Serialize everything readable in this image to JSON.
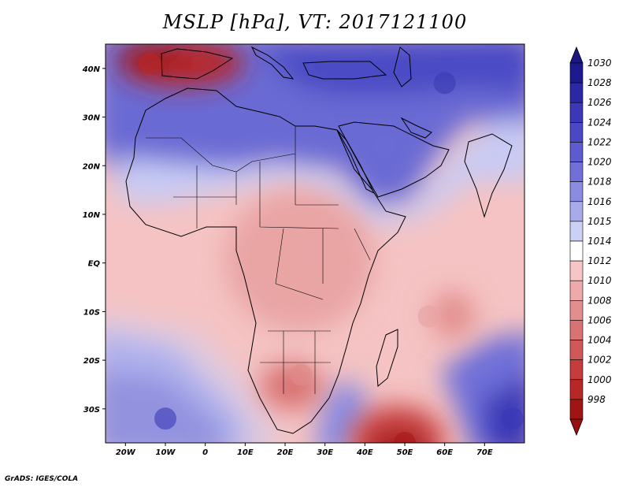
{
  "title": "MSLP [hPa], VT: 2017121100",
  "credit": "GrADS: IGES/COLA",
  "map": {
    "lon_range": [
      -25,
      80
    ],
    "lat_range": [
      -37,
      45
    ],
    "lon_ticks": [
      {
        "lon": -20,
        "label": "20W"
      },
      {
        "lon": -10,
        "label": "10W"
      },
      {
        "lon": 0,
        "label": "0"
      },
      {
        "lon": 10,
        "label": "10E"
      },
      {
        "lon": 20,
        "label": "20E"
      },
      {
        "lon": 30,
        "label": "30E"
      },
      {
        "lon": 40,
        "label": "40E"
      },
      {
        "lon": 50,
        "label": "50E"
      },
      {
        "lon": 60,
        "label": "60E"
      },
      {
        "lon": 70,
        "label": "70E"
      }
    ],
    "lat_ticks": [
      {
        "lat": 40,
        "label": "40N"
      },
      {
        "lat": 30,
        "label": "30N"
      },
      {
        "lat": 20,
        "label": "20N"
      },
      {
        "lat": 10,
        "label": "10N"
      },
      {
        "lat": 0,
        "label": "EQ"
      },
      {
        "lat": -10,
        "label": "10S"
      },
      {
        "lat": -20,
        "label": "20S"
      },
      {
        "lat": -30,
        "label": "30S"
      }
    ]
  },
  "colorbar": {
    "levels": [
      {
        "label": "1030",
        "color": "#1c1a8e"
      },
      {
        "label": "1028",
        "color": "#2a28a4"
      },
      {
        "label": "1026",
        "color": "#3a38b6"
      },
      {
        "label": "1024",
        "color": "#4a48c4"
      },
      {
        "label": "1022",
        "color": "#5c5ccf"
      },
      {
        "label": "1020",
        "color": "#7070d8"
      },
      {
        "label": "1018",
        "color": "#8a8ce2"
      },
      {
        "label": "1016",
        "color": "#a8aaeb"
      },
      {
        "label": "1015",
        "color": "#cdd0f5"
      },
      {
        "label": "1014",
        "color": "#ffffff"
      },
      {
        "label": "1012",
        "color": "#f6c6c6"
      },
      {
        "label": "1010",
        "color": "#eeaaaa"
      },
      {
        "label": "1008",
        "color": "#e38e8e"
      },
      {
        "label": "1006",
        "color": "#d97272"
      },
      {
        "label": "1004",
        "color": "#d05858"
      },
      {
        "label": "1002",
        "color": "#c63c3c"
      },
      {
        "label": "1000",
        "color": "#b82626"
      },
      {
        "label": "998",
        "color": "#a01414"
      }
    ],
    "top_cap_color": "#1a1880",
    "bottom_cap_color": "#9a1010"
  },
  "pressure_systems": [
    {
      "name": "iberia-low",
      "lon": -14,
      "lat": 41,
      "color": "#b82626"
    },
    {
      "name": "mozambique-channel-low",
      "lon": 50,
      "lat": -37,
      "color": "#a8181a"
    },
    {
      "name": "madagascar-east-low",
      "lon": 56,
      "lat": -11,
      "color": "#e9a2a2"
    },
    {
      "name": "central-africa-low",
      "lon": 25,
      "lat": 2,
      "color": "#eaa7a7"
    },
    {
      "name": "kalahari-low",
      "lon": 24,
      "lat": -23,
      "color": "#e08a8a"
    },
    {
      "name": "asia-high",
      "lon": 60,
      "lat": 37,
      "color": "#3b3ab3"
    },
    {
      "name": "arabia-high",
      "lon": 45,
      "lat": 24,
      "color": "#6c6dd6"
    },
    {
      "name": "south-atlantic-high",
      "lon": -10,
      "lat": -32,
      "color": "#3c3ab8"
    },
    {
      "name": "indian-ocean-high",
      "lon": 77,
      "lat": -32,
      "color": "#3a39b5"
    }
  ]
}
